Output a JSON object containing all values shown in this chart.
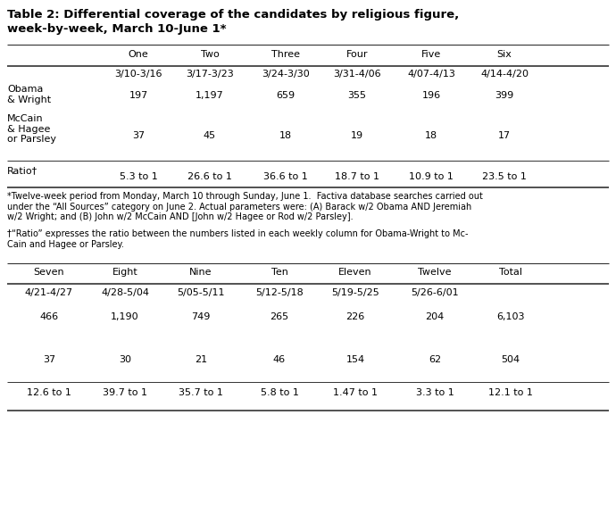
{
  "title_line1": "Table 2: Differential coverage of the candidates by religious figure,",
  "title_line2": "week-by-week, March 10-June 1*",
  "top_headers": [
    "",
    "One",
    "Two",
    "Three",
    "Four",
    "Five",
    "Six"
  ],
  "top_dates": [
    "",
    "3/10-3/16",
    "3/17-3/23",
    "3/24-3/30",
    "3/31-4/06",
    "4/07-4/13",
    "4/14-4/20"
  ],
  "top_row0_label": "Obama\n& Wright",
  "top_row0_vals": [
    "197",
    "1,197",
    "659",
    "355",
    "196",
    "399"
  ],
  "top_row1_label": "McCain\n& Hagee\nor Parsley",
  "top_row1_vals": [
    "37",
    "45",
    "18",
    "19",
    "18",
    "17"
  ],
  "top_row2_label": "Ratio†",
  "top_row2_vals": [
    "5.3 to 1",
    "26.6 to 1",
    "36.6 to 1",
    "18.7 to 1",
    "10.9 to 1",
    "23.5 to 1"
  ],
  "footnote1": "*Twelve-week period from Monday, March 10 through Sunday, June 1.  Factiva database searches carried out\nunder the “All Sources” category on June 2. Actual parameters were: (A) Barack w/2 Obama AND Jeremiah\nw/2 Wright; and (B) John w/2 McCain AND [John w/2 Hagee or Rod w/2 Parsley].",
  "footnote2": "†“Ratio” expresses the ratio between the numbers listed in each weekly column for Obama-Wright to Mc-\nCain and Hagee or Parsley.",
  "bot_headers": [
    "Seven",
    "Eight",
    "Nine",
    "Ten",
    "Eleven",
    "Twelve",
    "Total"
  ],
  "bot_dates": [
    "4/21-4/27",
    "4/28-5/04",
    "5/05-5/11",
    "5/12-5/18",
    "5/19-5/25",
    "5/26-6/01",
    ""
  ],
  "bot_row0_vals": [
    "466",
    "1,190",
    "749",
    "265",
    "226",
    "204",
    "6,103"
  ],
  "bot_row1_vals": [
    "37",
    "30",
    "21",
    "46",
    "154",
    "62",
    "504"
  ],
  "bot_row2_vals": [
    "12.6 to 1",
    "39.7 to 1",
    "35.7 to 1",
    "5.8 to 1",
    "1.47 to 1",
    "3.3 to 1",
    "12.1 to 1"
  ],
  "bg_color": "#ffffff",
  "font_size": 8.0,
  "title_font_size": 9.5
}
